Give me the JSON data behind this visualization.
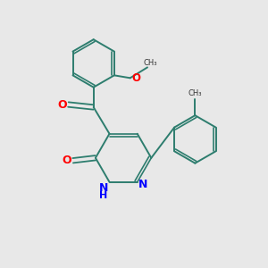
{
  "bg_color": "#e8e8e8",
  "bond_color": "#2d7d6e",
  "nitrogen_color": "#0000ff",
  "oxygen_color": "#ff0000",
  "text_color": "#333333",
  "figsize": [
    3.0,
    3.0
  ],
  "dpi": 100,
  "xlim": [
    0,
    10
  ],
  "ylim": [
    0,
    10
  ]
}
